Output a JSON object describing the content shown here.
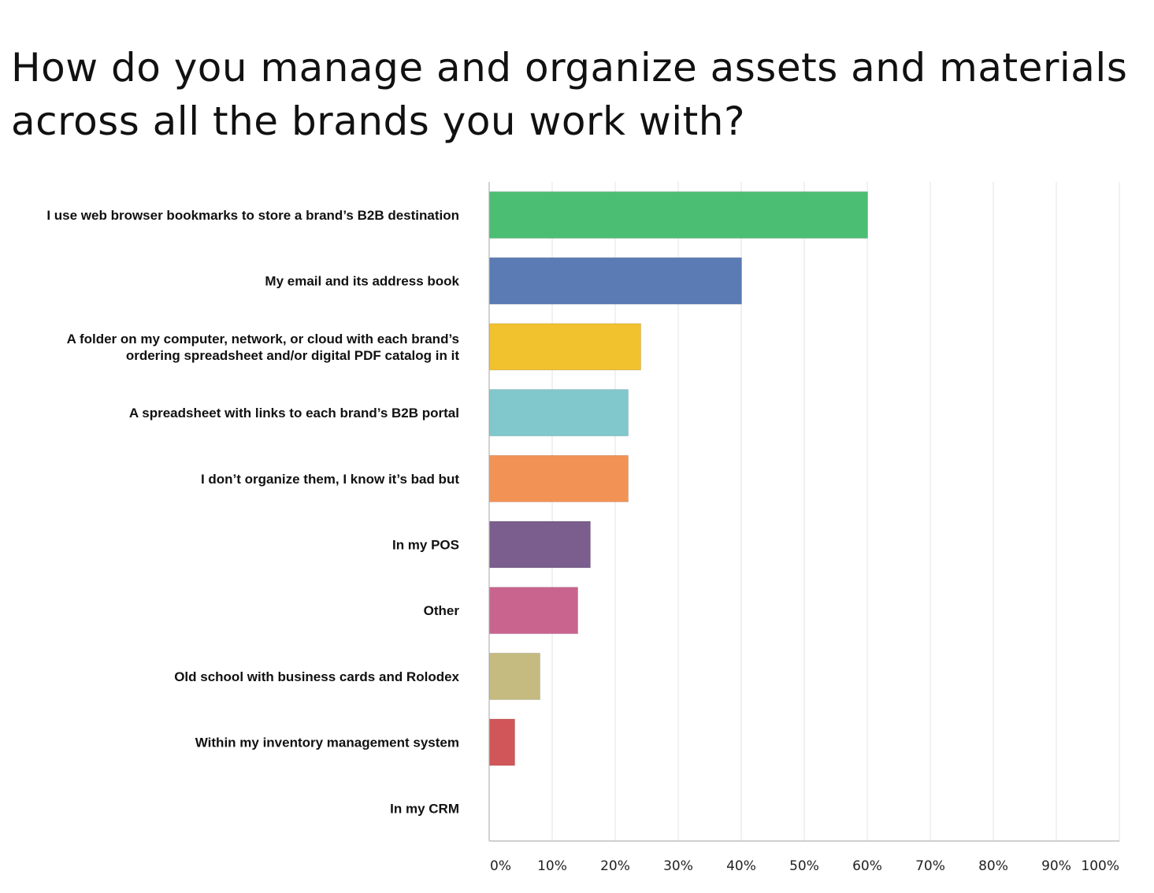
{
  "title": "How do you manage and organize assets and materials across all the brands you work with?",
  "chart_data": {
    "type": "bar",
    "orientation": "horizontal",
    "title": "How do you manage and organize assets and materials across all the brands you work with?",
    "xlabel": "",
    "ylabel": "",
    "xlim": [
      0,
      100
    ],
    "x_ticks": [
      "0%",
      "10%",
      "20%",
      "30%",
      "40%",
      "50%",
      "60%",
      "70%",
      "80%",
      "90%",
      "100%"
    ],
    "grid": "vertical",
    "legend": "none",
    "categories": [
      "I use web browser bookmarks to store a brand’s B2B destination",
      "My email and its address book",
      "A folder on my computer, network, or cloud with each brand’s\nordering spreadsheet and/or digital PDF catalog in it",
      "A spreadsheet with links to each brand’s B2B portal",
      "I don’t organize them, I know it’s bad but",
      "In my POS",
      "Other",
      "Old school with business cards and Rolodex",
      "Within my inventory management system",
      "In my CRM"
    ],
    "values": [
      60,
      40,
      24,
      22,
      22,
      16,
      14,
      8,
      4,
      0
    ],
    "colors": [
      "#4cbe74",
      "#5a7bb4",
      "#f2c12e",
      "#80c8cc",
      "#f39255",
      "#7b5e8e",
      "#c9648f",
      "#c5bb80",
      "#d15659",
      "#cccccc"
    ]
  }
}
